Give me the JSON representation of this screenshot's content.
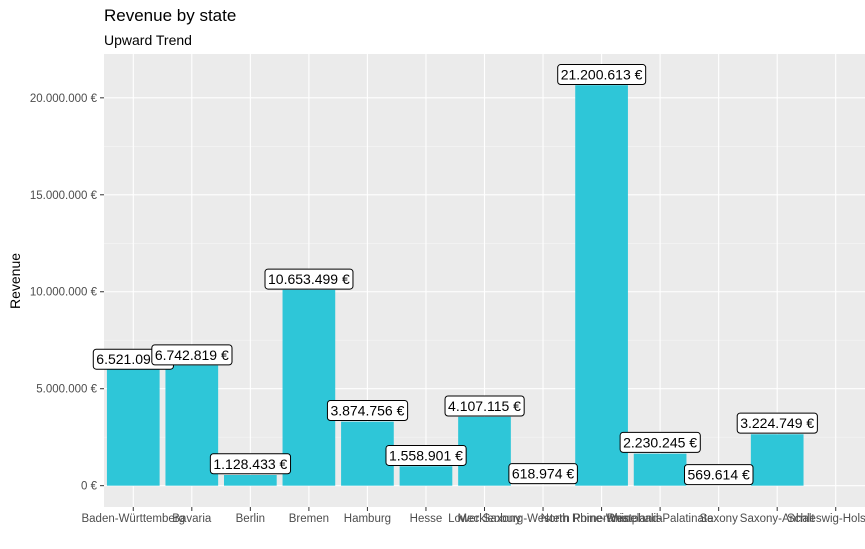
{
  "chart_data": {
    "type": "bar",
    "title": "Revenue by state",
    "subtitle": "Upward Trend",
    "xlabel": "",
    "ylabel": "Revenue",
    "categories": [
      "Baden-Württemberg",
      "Bavaria",
      "Berlin",
      "Bremen",
      "Hamburg",
      "Hesse",
      "Lower Saxony",
      "Mecklenburg-Western Pomerania",
      "North Rhine-Westphalia",
      "Rhineland-Palatinate",
      "Saxony",
      "Saxony-Anhalt",
      "Schleswig-Holstein"
    ],
    "values": [
      6521098,
      6742819,
      1128433,
      10653499,
      3874756,
      1558901,
      4107115,
      618974,
      21200613,
      2230245,
      569614,
      3224749,
      0
    ],
    "bar_heights": [
      6000000,
      6200000,
      550000,
      10100000,
      3300000,
      1000000,
      3550000,
      0,
      20650000,
      1650000,
      0,
      2650000,
      0
    ],
    "value_labels": [
      "6.521.098 €",
      "6.742.819 €",
      "1.128.433 €",
      "10.653.499 €",
      "3.874.756 €",
      "1.558.901 €",
      "4.107.115 €",
      "618.974 €",
      "21.200.613 €",
      "2.230.245 €",
      "569.614 €",
      "3.224.749 €",
      ""
    ],
    "yticks": [
      0,
      5000000,
      10000000,
      15000000,
      20000000
    ],
    "ytick_labels": [
      "0 €",
      "5.000.000 €",
      "10.000.000 €",
      "15.000.000 €",
      "20.000.000 €"
    ],
    "ylim": [
      -1100000,
      22260000
    ],
    "grid": true,
    "legend": "none",
    "colors": {
      "bar": "#2EC6D8",
      "panel": "#EBEBEB",
      "grid_major": "#FFFFFF",
      "grid_minor": "#F5F5F5"
    }
  }
}
